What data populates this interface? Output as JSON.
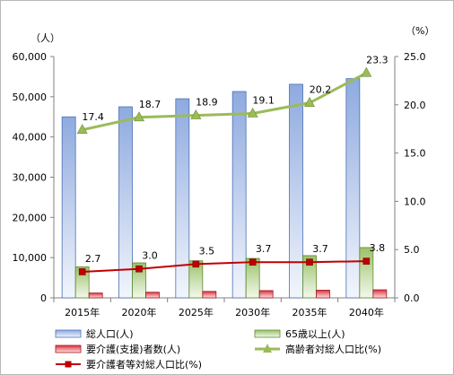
{
  "chart_data": {
    "type": "bar",
    "categories": [
      "2015年",
      "2020年",
      "2025年",
      "2030年",
      "2035年",
      "2040年"
    ],
    "left_axis": {
      "unit": "（人）",
      "ylim": [
        0,
        60000
      ],
      "ticks": [
        "0",
        "10,000",
        "20,000",
        "30,000",
        "40,000",
        "50,000",
        "60,000"
      ],
      "tick_values": [
        0,
        10000,
        20000,
        30000,
        40000,
        50000,
        60000
      ]
    },
    "right_axis": {
      "unit": "（%）",
      "ylim": [
        0,
        25
      ],
      "ticks": [
        "0.0",
        "5.0",
        "10.0",
        "15.0",
        "20.0",
        "25.0"
      ],
      "tick_values": [
        0,
        5,
        10,
        15,
        20,
        25
      ]
    },
    "series": [
      {
        "name": "総人口(人)",
        "kind": "bar",
        "axis": "left",
        "color": "#7f9fd8",
        "values": [
          45000,
          47500,
          49500,
          51300,
          53100,
          54500
        ]
      },
      {
        "name": "65歳以上(人)",
        "kind": "bar",
        "axis": "left",
        "color": "#9bbb59",
        "values": [
          7700,
          8700,
          9200,
          9800,
          10500,
          12500
        ]
      },
      {
        "name": "要介護(支援)者数(人)",
        "kind": "bar",
        "axis": "left",
        "color": "#e0303c",
        "values": [
          1200,
          1400,
          1600,
          1800,
          1900,
          2000
        ]
      },
      {
        "name": "高齢者対総人口比(%)",
        "kind": "line",
        "axis": "right",
        "color": "#9bbb59",
        "marker": "triangle",
        "values": [
          17.4,
          18.7,
          18.9,
          19.1,
          20.2,
          23.3
        ],
        "labels": [
          "17.4",
          "18.7",
          "18.9",
          "19.1",
          "20.2",
          "23.3"
        ]
      },
      {
        "name": "要介護者等対総人口比(%)",
        "kind": "line",
        "axis": "right",
        "color": "#c00000",
        "marker": "square",
        "values": [
          2.7,
          3.0,
          3.5,
          3.7,
          3.7,
          3.8
        ],
        "labels": [
          "2.7",
          "3.0",
          "3.5",
          "3.7",
          "3.7",
          "3.8"
        ]
      }
    ],
    "legend": [
      {
        "label": "総人口(人)",
        "kind": "bar",
        "color": "#7f9fd8"
      },
      {
        "label": "65歳以上(人)",
        "kind": "bar",
        "color": "#9bbb59"
      },
      {
        "label": "要介護(支援)者数(人)",
        "kind": "bar",
        "color": "#e0303c"
      },
      {
        "label": "高齢者対総人口比(%)",
        "kind": "line",
        "color": "#9bbb59",
        "marker": "triangle"
      },
      {
        "label": "要介護者等対総人口比(%)",
        "kind": "line",
        "color": "#c00000",
        "marker": "square"
      }
    ],
    "legend_position": "bottom",
    "grid": false
  }
}
